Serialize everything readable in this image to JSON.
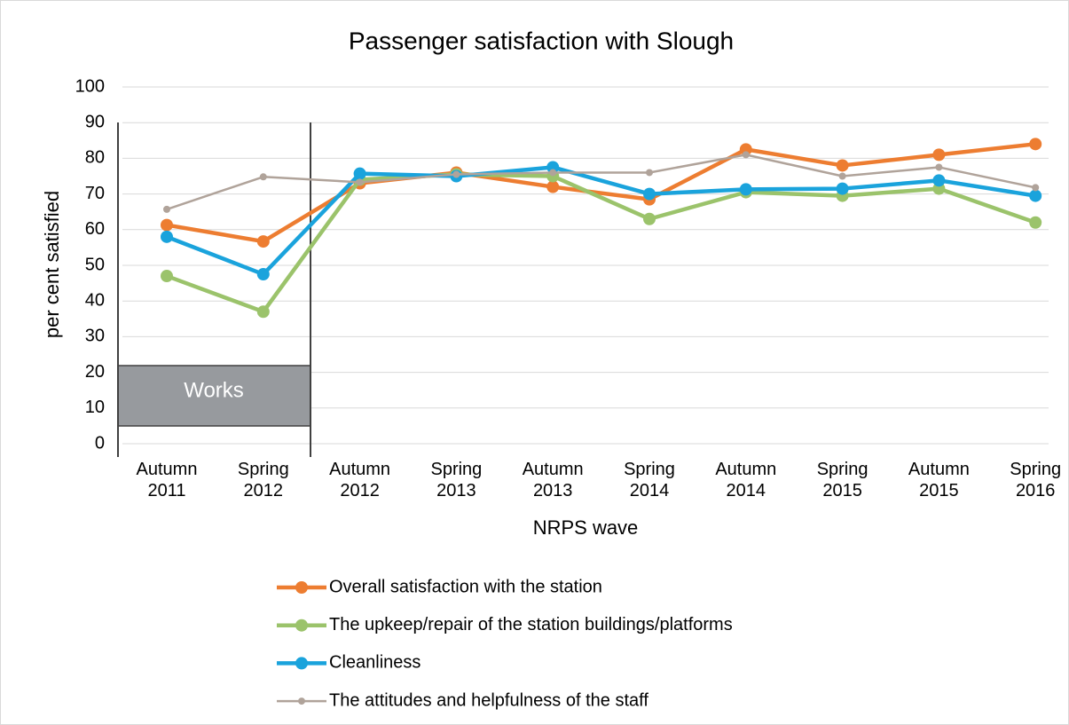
{
  "chart_data": {
    "type": "line",
    "title": "Passenger satisfaction with Slough",
    "x_label": "NRPS wave",
    "y_label": "per cent satisfied",
    "annotation": "Works",
    "categories": [
      "Autumn 2011",
      "Spring 2012",
      "Autumn 2012",
      "Spring 2013",
      "Autumn 2013",
      "Spring 2014",
      "Autumn 2014",
      "Spring 2015",
      "Autumn 2015",
      "Spring 2016"
    ],
    "series": [
      {
        "name": "Overall satisfaction with the station",
        "color": "#ed7d31",
        "values": [
          61.3,
          56.7,
          73,
          76,
          72,
          68.5,
          82.5,
          78,
          81,
          84
        ]
      },
      {
        "name": "The upkeep/repair of the station buildings/platforms",
        "color": "#9bc36b",
        "values": [
          47,
          37,
          74,
          75.5,
          75,
          63,
          70.5,
          69.5,
          71.5,
          62
        ]
      },
      {
        "name": "Cleanliness",
        "color": "#1aa3dc",
        "values": [
          58,
          47.5,
          75.7,
          75,
          77.5,
          70,
          71.3,
          71.5,
          73.8,
          69.5
        ]
      },
      {
        "name": "The attitudes and helpfulness of the staff",
        "color": "#b0a39a",
        "values": [
          65.7,
          74.8,
          73.3,
          75.5,
          76,
          76,
          81,
          75,
          77.5,
          71.8
        ]
      }
    ],
    "ylim": [
      0,
      100
    ],
    "yticks": [
      0,
      10,
      20,
      30,
      40,
      50,
      60,
      70,
      80,
      90,
      100
    ],
    "grid": true
  }
}
